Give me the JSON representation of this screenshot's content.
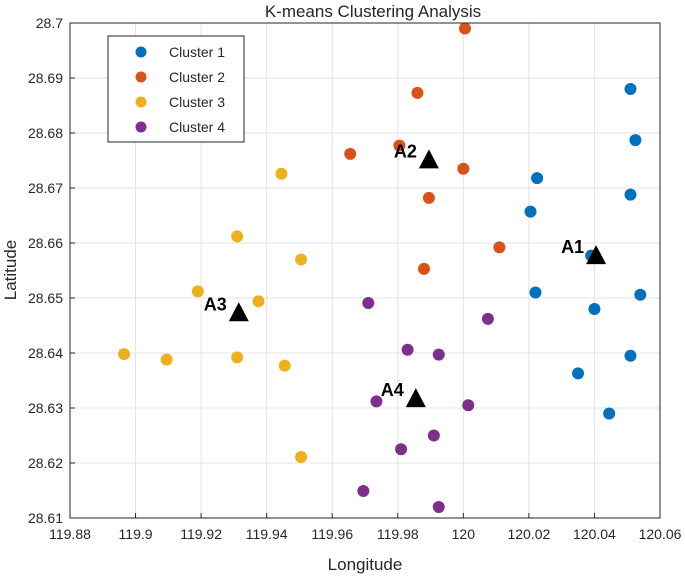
{
  "chart_data": {
    "type": "scatter",
    "title": "K-means Clustering Analysis",
    "xlabel": "Longitude",
    "ylabel": "Latitude",
    "xlim": [
      119.88,
      120.06
    ],
    "ylim": [
      28.61,
      28.7
    ],
    "xticks": [
      119.88,
      119.9,
      119.92,
      119.94,
      119.96,
      119.98,
      120,
      120.02,
      120.04,
      120.06
    ],
    "xtick_labels": [
      "119.88",
      "119.9",
      "119.92",
      "119.94",
      "119.96",
      "119.98",
      "120",
      "120.02",
      "120.04",
      "120.06"
    ],
    "yticks": [
      28.61,
      28.62,
      28.63,
      28.64,
      28.65,
      28.66,
      28.67,
      28.68,
      28.69,
      28.7
    ],
    "ytick_labels": [
      "28.61",
      "28.62",
      "28.63",
      "28.64",
      "28.65",
      "28.66",
      "28.67",
      "28.68",
      "28.69",
      "28.7"
    ],
    "grid": true,
    "legend_location": "top-left",
    "series": [
      {
        "name": "Cluster 1",
        "color": "#0072BD",
        "points": [
          [
            120.051,
            28.688
          ],
          [
            120.0525,
            28.6787
          ],
          [
            120.0225,
            28.6718
          ],
          [
            120.051,
            28.6688
          ],
          [
            120.0205,
            28.6657
          ],
          [
            120.039,
            28.6577
          ],
          [
            120.022,
            28.651
          ],
          [
            120.054,
            28.6506
          ],
          [
            120.04,
            28.648
          ],
          [
            120.051,
            28.6395
          ],
          [
            120.035,
            28.6363
          ],
          [
            120.0445,
            28.629
          ]
        ]
      },
      {
        "name": "Cluster 2",
        "color": "#D95319",
        "points": [
          [
            120.0005,
            28.699
          ],
          [
            119.986,
            28.6873
          ],
          [
            119.9805,
            28.6777
          ],
          [
            119.9655,
            28.6762
          ],
          [
            120.0,
            28.6735
          ],
          [
            119.9895,
            28.6682
          ],
          [
            120.011,
            28.6592
          ],
          [
            119.988,
            28.6553
          ]
        ]
      },
      {
        "name": "Cluster 3",
        "color": "#EDB120",
        "points": [
          [
            119.9445,
            28.6726
          ],
          [
            119.931,
            28.6612
          ],
          [
            119.9505,
            28.657
          ],
          [
            119.919,
            28.6512
          ],
          [
            119.9375,
            28.6494
          ],
          [
            119.8965,
            28.6398
          ],
          [
            119.9095,
            28.6388
          ],
          [
            119.931,
            28.6392
          ],
          [
            119.9455,
            28.6377
          ],
          [
            119.9505,
            28.6211
          ]
        ]
      },
      {
        "name": "Cluster 4",
        "color": "#7E2F8E",
        "points": [
          [
            119.971,
            28.6491
          ],
          [
            120.0075,
            28.6462
          ],
          [
            119.983,
            28.6406
          ],
          [
            119.9925,
            28.6397
          ],
          [
            119.9735,
            28.6312
          ],
          [
            120.0015,
            28.6305
          ],
          [
            119.991,
            28.625
          ],
          [
            119.981,
            28.6225
          ],
          [
            119.9695,
            28.6149
          ],
          [
            119.9925,
            28.612
          ]
        ]
      }
    ],
    "centroids": [
      {
        "label": "A1",
        "x": 120.0405,
        "y": 28.6578
      },
      {
        "label": "A2",
        "x": 119.9895,
        "y": 28.6752
      },
      {
        "label": "A3",
        "x": 119.9315,
        "y": 28.6474
      },
      {
        "label": "A4",
        "x": 119.9855,
        "y": 28.6318
      }
    ]
  }
}
